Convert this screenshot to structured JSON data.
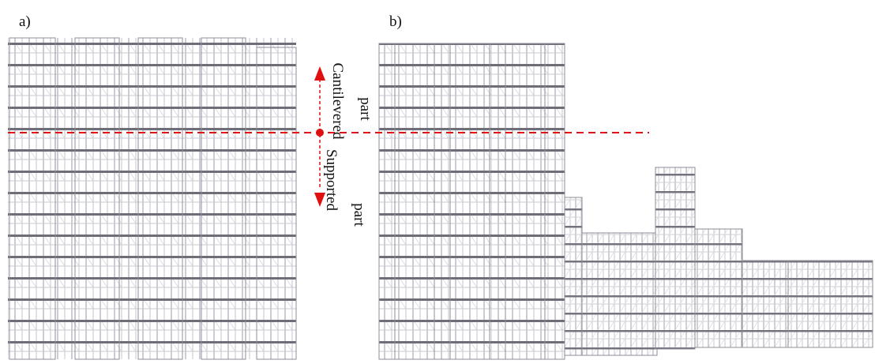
{
  "panels": [
    {
      "label": "a)"
    },
    {
      "label": "b)"
    }
  ],
  "annotations": {
    "upper": [
      "Cantilevered",
      "part"
    ],
    "lower": [
      "Supported",
      "part"
    ]
  }
}
